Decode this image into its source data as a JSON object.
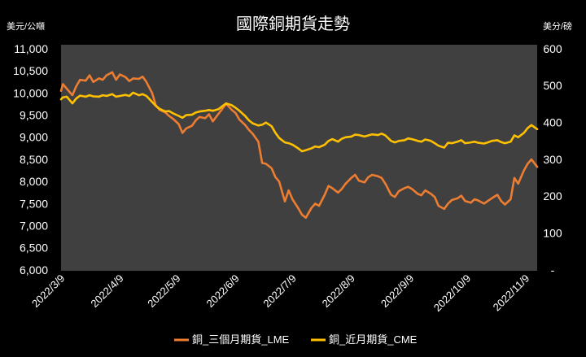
{
  "chart_data": {
    "type": "line",
    "title": "國際銅期貨走勢",
    "xlim": [
      "2022-03-08",
      "2022-11-14"
    ],
    "x_ticks": [
      "2022/3/9",
      "2022/4/9",
      "2022/5/9",
      "2022/6/9",
      "2022/7/9",
      "2022/8/9",
      "2022/9/9",
      "2022/10/9",
      "2022/11/9"
    ],
    "y_left": {
      "label": "美元/公噸",
      "range": [
        6000,
        11000
      ],
      "ticks": [
        {
          "value": 11000,
          "label": "11,000"
        },
        {
          "value": 10500,
          "label": "10,500"
        },
        {
          "value": 10000,
          "label": "10,000"
        },
        {
          "value": 9500,
          "label": "9,500"
        },
        {
          "value": 9000,
          "label": "9,000"
        },
        {
          "value": 8500,
          "label": "8,500"
        },
        {
          "value": 8000,
          "label": "8,000"
        },
        {
          "value": 7500,
          "label": "7,500"
        },
        {
          "value": 7000,
          "label": "7,000"
        },
        {
          "value": 6500,
          "label": "6,500"
        },
        {
          "value": 6000,
          "label": "6,000"
        }
      ]
    },
    "y_right": {
      "label": "美分/磅",
      "range": [
        0,
        600
      ],
      "ticks": [
        {
          "value": 600,
          "label": "600"
        },
        {
          "value": 500,
          "label": "500"
        },
        {
          "value": 400,
          "label": "400"
        },
        {
          "value": 300,
          "label": "300"
        },
        {
          "value": 200,
          "label": "200"
        },
        {
          "value": 100,
          "label": "100"
        },
        {
          "value": 0,
          "label": "-"
        }
      ]
    },
    "x": [
      "2022-03-08",
      "2022-03-09",
      "2022-03-11",
      "2022-03-14",
      "2022-03-16",
      "2022-03-18",
      "2022-03-21",
      "2022-03-23",
      "2022-03-25",
      "2022-03-28",
      "2022-03-30",
      "2022-04-01",
      "2022-04-04",
      "2022-04-06",
      "2022-04-08",
      "2022-04-11",
      "2022-04-13",
      "2022-04-15",
      "2022-04-18",
      "2022-04-20",
      "2022-04-22",
      "2022-04-25",
      "2022-04-27",
      "2022-04-29",
      "2022-05-02",
      "2022-05-04",
      "2022-05-06",
      "2022-05-09",
      "2022-05-11",
      "2022-05-13",
      "2022-05-16",
      "2022-05-18",
      "2022-05-20",
      "2022-05-23",
      "2022-05-25",
      "2022-05-27",
      "2022-05-30",
      "2022-06-01",
      "2022-06-03",
      "2022-06-06",
      "2022-06-08",
      "2022-06-10",
      "2022-06-13",
      "2022-06-15",
      "2022-06-17",
      "2022-06-20",
      "2022-06-22",
      "2022-06-24",
      "2022-06-27",
      "2022-06-29",
      "2022-07-01",
      "2022-07-04",
      "2022-07-06",
      "2022-07-08",
      "2022-07-11",
      "2022-07-13",
      "2022-07-15",
      "2022-07-18",
      "2022-07-20",
      "2022-07-22",
      "2022-07-25",
      "2022-07-27",
      "2022-07-29",
      "2022-08-01",
      "2022-08-03",
      "2022-08-05",
      "2022-08-08",
      "2022-08-10",
      "2022-08-12",
      "2022-08-15",
      "2022-08-17",
      "2022-08-19",
      "2022-08-22",
      "2022-08-24",
      "2022-08-26",
      "2022-08-29",
      "2022-08-31",
      "2022-09-02",
      "2022-09-05",
      "2022-09-07",
      "2022-09-09",
      "2022-09-12",
      "2022-09-14",
      "2022-09-16",
      "2022-09-19",
      "2022-09-21",
      "2022-09-23",
      "2022-09-26",
      "2022-09-28",
      "2022-09-30",
      "2022-10-03",
      "2022-10-05",
      "2022-10-07",
      "2022-10-10",
      "2022-10-12",
      "2022-10-14",
      "2022-10-17",
      "2022-10-19",
      "2022-10-21",
      "2022-10-24",
      "2022-10-26",
      "2022-10-28",
      "2022-10-31",
      "2022-11-02",
      "2022-11-04",
      "2022-11-07",
      "2022-11-09",
      "2022-11-11",
      "2022-11-14"
    ],
    "series": [
      {
        "name": "銅_三個月期貨_LME",
        "axis": "left",
        "color": "#ED7D31",
        "values": [
          10050,
          10200,
          10100,
          9950,
          10150,
          10300,
          10280,
          10400,
          10250,
          10330,
          10300,
          10400,
          10470,
          10300,
          10420,
          10360,
          10270,
          10330,
          10320,
          10370,
          10250,
          10000,
          9720,
          9620,
          9560,
          9480,
          9420,
          9300,
          9100,
          9200,
          9260,
          9380,
          9460,
          9430,
          9520,
          9360,
          9530,
          9640,
          9760,
          9620,
          9550,
          9400,
          9280,
          9170,
          9080,
          8900,
          8420,
          8400,
          8300,
          8100,
          8000,
          7550,
          7800,
          7600,
          7400,
          7250,
          7180,
          7400,
          7500,
          7450,
          7700,
          7900,
          7850,
          7750,
          7830,
          7950,
          8080,
          8150,
          8020,
          7980,
          8100,
          8150,
          8120,
          8080,
          7950,
          7700,
          7650,
          7780,
          7850,
          7880,
          7830,
          7720,
          7690,
          7800,
          7720,
          7650,
          7450,
          7380,
          7500,
          7580,
          7620,
          7680,
          7560,
          7520,
          7600,
          7570,
          7500,
          7560,
          7620,
          7700,
          7560,
          7480,
          7600,
          8080,
          7950,
          8250,
          8400,
          8500,
          8330
        ]
      },
      {
        "name": "銅_近月期貨_CME",
        "axis": "right",
        "color": "#FFC000",
        "values": [
          463,
          468,
          470,
          452,
          465,
          473,
          470,
          474,
          471,
          470,
          474,
          472,
          477,
          470,
          472,
          475,
          472,
          481,
          474,
          477,
          472,
          456,
          445,
          437,
          430,
          431,
          425,
          418,
          413,
          420,
          421,
          427,
          430,
          432,
          434,
          432,
          436,
          444,
          452,
          447,
          440,
          432,
          418,
          406,
          398,
          392,
          394,
          400,
          390,
          372,
          358,
          346,
          344,
          340,
          330,
          322,
          325,
          330,
          335,
          333,
          340,
          350,
          355,
          348,
          356,
          360,
          362,
          367,
          366,
          362,
          365,
          368,
          366,
          370,
          365,
          350,
          346,
          350,
          352,
          357,
          355,
          350,
          348,
          354,
          350,
          344,
          337,
          332,
          345,
          344,
          348,
          352,
          344,
          346,
          348,
          345,
          343,
          346,
          350,
          352,
          347,
          344,
          348,
          365,
          360,
          372,
          385,
          393,
          382
        ]
      }
    ],
    "grid": false,
    "legend": "bottom"
  }
}
